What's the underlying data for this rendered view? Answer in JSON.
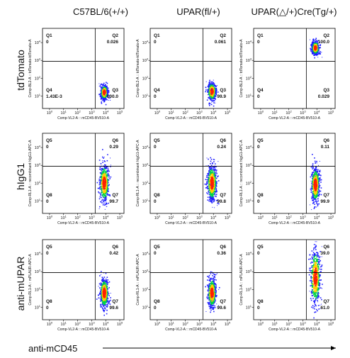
{
  "columns": [
    {
      "label": "C57BL/6(+/+)"
    },
    {
      "label": "UPAR(fl/+)"
    },
    {
      "label": "UPAR(△/+)Cre(Tg/+)"
    }
  ],
  "rows": [
    {
      "label": "tdTomato"
    },
    {
      "label": "hIgG1"
    },
    {
      "label": "anti-mUPAR"
    }
  ],
  "x_axis_caption": "anti-mCD45",
  "colors": {
    "density_low": "#1f1fff",
    "density_mid": "#00d24a",
    "density_high": "#ffd000",
    "density_peak": "#ff2000",
    "gate_line": "#000000"
  },
  "chart_data": [
    {
      "type": "scatter",
      "row": "tdTomato",
      "column": "C57BL/6(+/+)",
      "xlabel": "Comp-VL2-A :: mCD45-BV510-A",
      "ylabel": "Comp-BL2-A :: tdTomato-tdTomato-A",
      "x_ticks": [
        "10^0",
        "10^1",
        "10^2",
        "10^3",
        "10^4",
        "10^5"
      ],
      "y_ticks": [
        "10^1",
        "10^2",
        "10^3",
        "10^4"
      ],
      "log_scale": true,
      "quadrants": [
        {
          "name": "Q1",
          "value": "0"
        },
        {
          "name": "Q2",
          "value": "0.026"
        },
        {
          "name": "Q3",
          "value": "100.0"
        },
        {
          "name": "Q4",
          "value": "1.43E-3"
        }
      ],
      "population": {
        "center_log_x": 3.9,
        "center_log_y": 1.2,
        "spread_x": 0.12,
        "spread_y": 0.2,
        "shape": "compact"
      }
    },
    {
      "type": "scatter",
      "row": "tdTomato",
      "column": "UPAR(fl/+)",
      "xlabel": "Comp-VL2-A :: mCD45-BV510-A",
      "ylabel": "Comp-BL2-A :: tdTomato-tdTomato-A",
      "x_ticks": [
        "10^0",
        "10^1",
        "10^2",
        "10^3",
        "10^4",
        "10^5"
      ],
      "y_ticks": [
        "10^1",
        "10^2",
        "10^3",
        "10^4"
      ],
      "log_scale": true,
      "quadrants": [
        {
          "name": "Q1",
          "value": "0"
        },
        {
          "name": "Q2",
          "value": "0.061"
        },
        {
          "name": "Q3",
          "value": "99.9"
        },
        {
          "name": "Q4",
          "value": "0"
        }
      ],
      "population": {
        "center_log_x": 3.9,
        "center_log_y": 1.25,
        "spread_x": 0.14,
        "spread_y": 0.24,
        "shape": "compact"
      }
    },
    {
      "type": "scatter",
      "row": "tdTomato",
      "column": "UPAR(△/+)Cre(Tg/+)",
      "xlabel": "Comp-VL2-A :: mCD45-BV510-A",
      "ylabel": "Comp-BL2-A :: tdTomato-tdTomato-A",
      "x_ticks": [
        "10^0",
        "10^1",
        "10^2",
        "10^3",
        "10^4",
        "10^5"
      ],
      "y_ticks": [
        "10^1",
        "10^2",
        "10^3",
        "10^4"
      ],
      "log_scale": true,
      "quadrants": [
        {
          "name": "Q1",
          "value": "0"
        },
        {
          "name": "Q2",
          "value": "100.0"
        },
        {
          "name": "Q3",
          "value": "0.029"
        },
        {
          "name": "Q4",
          "value": "0"
        }
      ],
      "population": {
        "center_log_x": 3.9,
        "center_log_y": 3.7,
        "spread_x": 0.12,
        "spread_y": 0.18,
        "shape": "compact"
      }
    },
    {
      "type": "scatter",
      "row": "hIgG1",
      "column": "C57BL/6(+/+)",
      "xlabel": "Comp-VL2-A :: mCD45-BV510-A",
      "ylabel": "Comp-RL1-A :: recombinant hIgG1-APC-A",
      "x_ticks": [
        "10^0",
        "10^1",
        "10^2",
        "10^3",
        "10^4",
        "10^5"
      ],
      "y_ticks": [
        "10^1",
        "10^2",
        "10^3",
        "10^4"
      ],
      "log_scale": true,
      "quadrants": [
        {
          "name": "Q5",
          "value": "0"
        },
        {
          "name": "Q6",
          "value": "0.29"
        },
        {
          "name": "Q7",
          "value": "99.7"
        },
        {
          "name": "Q8",
          "value": "0"
        }
      ],
      "population": {
        "center_log_x": 3.9,
        "center_log_y": 2.0,
        "spread_x": 0.16,
        "spread_y": 0.5,
        "shape": "elongated"
      }
    },
    {
      "type": "scatter",
      "row": "hIgG1",
      "column": "UPAR(fl/+)",
      "xlabel": "Comp-VL2-A :: mCD45-BV510-A",
      "ylabel": "Comp-RL1-A :: recombinant hIgG1-APC-A",
      "x_ticks": [
        "10^0",
        "10^1",
        "10^2",
        "10^3",
        "10^4",
        "10^5"
      ],
      "y_ticks": [
        "10^1",
        "10^2",
        "10^3",
        "10^4"
      ],
      "log_scale": true,
      "quadrants": [
        {
          "name": "Q5",
          "value": "0"
        },
        {
          "name": "Q6",
          "value": "0.24"
        },
        {
          "name": "Q7",
          "value": "99.8"
        },
        {
          "name": "Q8",
          "value": "0"
        }
      ],
      "population": {
        "center_log_x": 3.9,
        "center_log_y": 2.0,
        "spread_x": 0.16,
        "spread_y": 0.48,
        "shape": "elongated"
      }
    },
    {
      "type": "scatter",
      "row": "hIgG1",
      "column": "UPAR(△/+)Cre(Tg/+)",
      "xlabel": "Comp-VL2-A :: mCD45-BV510-A",
      "ylabel": "Comp-RL1-A :: recombinant hIgG1-APC-A",
      "x_ticks": [
        "10^0",
        "10^1",
        "10^2",
        "10^3",
        "10^4",
        "10^5"
      ],
      "y_ticks": [
        "10^1",
        "10^2",
        "10^3",
        "10^4"
      ],
      "log_scale": true,
      "quadrants": [
        {
          "name": "Q5",
          "value": "0"
        },
        {
          "name": "Q6",
          "value": "0.11"
        },
        {
          "name": "Q7",
          "value": "99.9"
        },
        {
          "name": "Q8",
          "value": "0"
        }
      ],
      "population": {
        "center_log_x": 3.9,
        "center_log_y": 1.9,
        "spread_x": 0.14,
        "spread_y": 0.48,
        "shape": "elongated"
      }
    },
    {
      "type": "scatter",
      "row": "anti-mUPAR",
      "column": "C57BL/6(+/+)",
      "xlabel": "Comp-VL2-A :: mCD45-BV510-A",
      "ylabel": "Comp-RL1-A :: mPLAUR-APC-A",
      "x_ticks": [
        "10^0",
        "10^1",
        "10^2",
        "10^3",
        "10^4",
        "10^5"
      ],
      "y_ticks": [
        "10^1",
        "10^2",
        "10^3",
        "10^4"
      ],
      "log_scale": true,
      "quadrants": [
        {
          "name": "Q5",
          "value": "0"
        },
        {
          "name": "Q6",
          "value": "0.42"
        },
        {
          "name": "Q7",
          "value": "99.6"
        },
        {
          "name": "Q8",
          "value": "0"
        }
      ],
      "population": {
        "center_log_x": 3.9,
        "center_log_y": 1.8,
        "spread_x": 0.14,
        "spread_y": 0.4,
        "shape": "elongated"
      }
    },
    {
      "type": "scatter",
      "row": "anti-mUPAR",
      "column": "UPAR(fl/+)",
      "xlabel": "Comp-VL2-A :: mCD45-BV510-A",
      "ylabel": "Comp-RL1-A :: mPLAUR-APC-A",
      "x_ticks": [
        "10^0",
        "10^1",
        "10^2",
        "10^3",
        "10^4",
        "10^5"
      ],
      "y_ticks": [
        "10^1",
        "10^2",
        "10^3",
        "10^4"
      ],
      "log_scale": true,
      "quadrants": [
        {
          "name": "Q5",
          "value": "0"
        },
        {
          "name": "Q6",
          "value": "0.36"
        },
        {
          "name": "Q7",
          "value": "99.6"
        },
        {
          "name": "Q8",
          "value": "0"
        }
      ],
      "population": {
        "center_log_x": 3.9,
        "center_log_y": 1.8,
        "spread_x": 0.14,
        "spread_y": 0.4,
        "shape": "elongated"
      }
    },
    {
      "type": "scatter",
      "row": "anti-mUPAR",
      "column": "UPAR(△/+)Cre(Tg/+)",
      "xlabel": "Comp-VL2-A :: mCD45-BV510-A",
      "ylabel": "Comp-RL1-A :: mPLAUR-APC-A",
      "x_ticks": [
        "10^0",
        "10^1",
        "10^2",
        "10^3",
        "10^4",
        "10^5"
      ],
      "y_ticks": [
        "10^1",
        "10^2",
        "10^3",
        "10^4"
      ],
      "log_scale": true,
      "quadrants": [
        {
          "name": "Q5",
          "value": "0"
        },
        {
          "name": "Q6",
          "value": "39.0"
        },
        {
          "name": "Q7",
          "value": "61.0"
        },
        {
          "name": "Q8",
          "value": "0"
        }
      ],
      "population": {
        "center_log_x": 3.9,
        "center_log_y": 2.7,
        "spread_x": 0.17,
        "spread_y": 0.75,
        "shape": "elongated"
      }
    }
  ]
}
